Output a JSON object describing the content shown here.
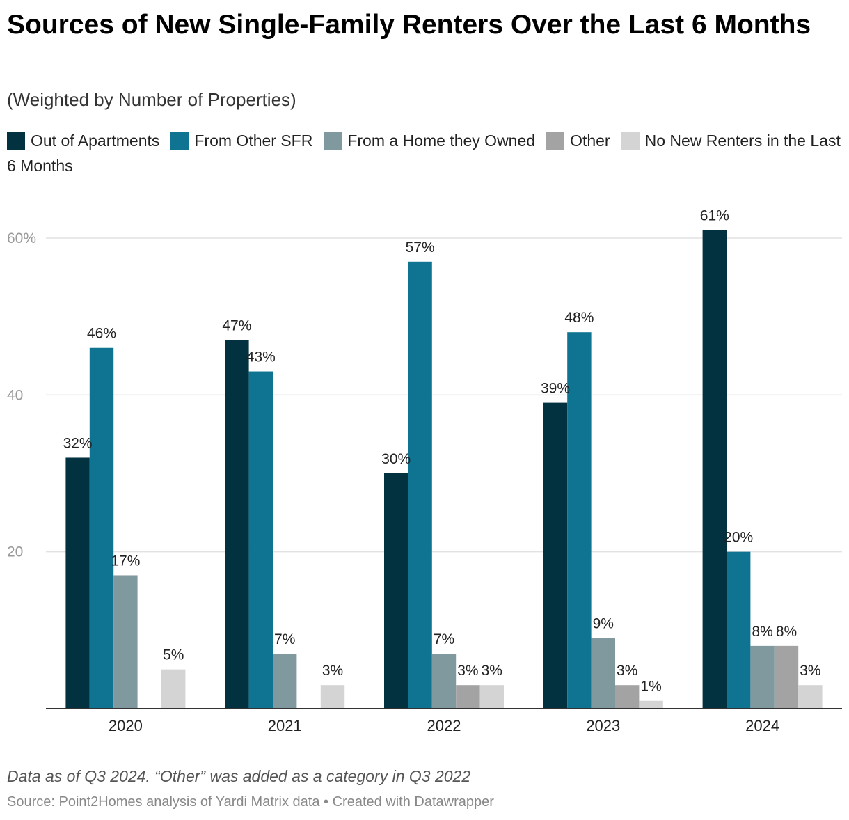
{
  "header": {
    "title": "Sources of New Single-Family Renters Over the Last 6 Months",
    "subtitle": "(Weighted by Number of Properties)"
  },
  "footer": {
    "note": "Data as of Q3 2024. “Other” was added as a category in Q3 2022",
    "source": "Source: Point2Homes analysis of Yardi Matrix data • Created with Datawrapper"
  },
  "chart_data": {
    "type": "bar",
    "title": "Sources of New Single-Family Renters Over the Last 6 Months",
    "subtitle": "(Weighted by Number of Properties)",
    "xlabel": "",
    "ylabel": "",
    "ylim": [
      0,
      60
    ],
    "yticks": [
      20,
      40,
      60
    ],
    "ytick_labels": [
      "20",
      "40",
      "60%"
    ],
    "grid": true,
    "legend_position": "top",
    "categories": [
      "2020",
      "2021",
      "2022",
      "2023",
      "2024"
    ],
    "series": [
      {
        "name": "Out of Apartments",
        "color": "#02313f",
        "values": [
          32,
          47,
          30,
          39,
          61
        ],
        "labels": [
          "32%",
          "47%",
          "30%",
          "39%",
          "61%"
        ]
      },
      {
        "name": "From Other SFR",
        "color": "#0e7491",
        "values": [
          46,
          43,
          57,
          48,
          20
        ],
        "labels": [
          "46%",
          "43%",
          "57%",
          "48%",
          "20%"
        ]
      },
      {
        "name": "From a Home they Owned",
        "color": "#80999f",
        "values": [
          17,
          7,
          7,
          9,
          8
        ],
        "labels": [
          "17%",
          "7%",
          "7%",
          "9%",
          "8%"
        ]
      },
      {
        "name": "Other",
        "color": "#a3a3a3",
        "values": [
          null,
          null,
          3,
          3,
          8
        ],
        "labels": [
          null,
          null,
          "3%",
          "3%",
          "8%"
        ]
      },
      {
        "name": "No New Renters in the Last 6 Months",
        "color": "#d4d4d4",
        "values": [
          5,
          3,
          3,
          1,
          3
        ],
        "labels": [
          "5%",
          "3%",
          "3%",
          "1%",
          "3%"
        ]
      }
    ]
  }
}
